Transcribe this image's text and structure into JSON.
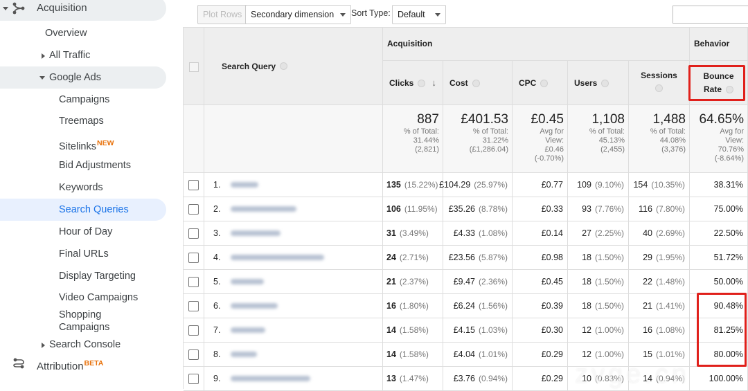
{
  "sidebar": {
    "items": [
      {
        "label": "Acquisition"
      },
      {
        "label": "Overview"
      },
      {
        "label": "All Traffic"
      },
      {
        "label": "Google Ads"
      },
      {
        "label": "Campaigns"
      },
      {
        "label": "Treemaps"
      },
      {
        "label": "Sitelinks",
        "badge": "NEW"
      },
      {
        "label": "Bid Adjustments"
      },
      {
        "label": "Keywords"
      },
      {
        "label": "Search Queries"
      },
      {
        "label": "Hour of Day"
      },
      {
        "label": "Final URLs"
      },
      {
        "label": "Display Targeting"
      },
      {
        "label": "Video Campaigns"
      },
      {
        "label": "Shopping Campaigns"
      },
      {
        "label": "Search Console"
      },
      {
        "label": "Attribution",
        "badge": "BETA"
      }
    ]
  },
  "toolbar": {
    "plot_rows": "Plot Rows",
    "secondary_dimension": "Secondary dimension",
    "sort_type_label": "Sort Type:",
    "sort_type": "Default"
  },
  "table": {
    "group_headers": [
      "Acquisition",
      "Behavior"
    ],
    "columns": [
      "Search Query",
      "Clicks",
      "Cost",
      "CPC",
      "Users",
      "Sessions",
      "Bounce Rate"
    ],
    "totals": [
      {
        "value": "887",
        "caption": "% of Total:",
        "share": "31.44%",
        "overall": "(2,821)"
      },
      {
        "value": "£401.53",
        "caption": "% of Total:",
        "share": "31.22%",
        "overall": "(£1,286.04)"
      },
      {
        "value": "£0.45",
        "caption": "Avg for View:",
        "share": "£0.46",
        "overall": "(-0.70%)"
      },
      {
        "value": "1,108",
        "caption": "% of Total:",
        "share": "45.13%",
        "overall": "(2,455)"
      },
      {
        "value": "1,488",
        "caption": "% of Total:",
        "share": "44.08%",
        "overall": "(3,376)"
      },
      {
        "value": "64.65%",
        "caption": "Avg for View:",
        "share": "70.76%",
        "overall": "(-8.64%)"
      }
    ],
    "rows": [
      [
        "1.",
        "135",
        "(15.22%)",
        "£104.29",
        "(25.97%)",
        "£0.77",
        "109",
        "(9.10%)",
        "154",
        "(10.35%)",
        "38.31%"
      ],
      [
        "2.",
        "106",
        "(11.95%)",
        "£35.26",
        "(8.78%)",
        "£0.33",
        "93",
        "(7.76%)",
        "116",
        "(7.80%)",
        "75.00%"
      ],
      [
        "3.",
        "31",
        "(3.49%)",
        "£4.33",
        "(1.08%)",
        "£0.14",
        "27",
        "(2.25%)",
        "40",
        "(2.69%)",
        "22.50%"
      ],
      [
        "4.",
        "24",
        "(2.71%)",
        "£23.56",
        "(5.87%)",
        "£0.98",
        "18",
        "(1.50%)",
        "29",
        "(1.95%)",
        "51.72%"
      ],
      [
        "5.",
        "21",
        "(2.37%)",
        "£9.47",
        "(2.36%)",
        "£0.45",
        "18",
        "(1.50%)",
        "22",
        "(1.48%)",
        "50.00%"
      ],
      [
        "6.",
        "16",
        "(1.80%)",
        "£6.24",
        "(1.56%)",
        "£0.39",
        "18",
        "(1.50%)",
        "21",
        "(1.41%)",
        "90.48%"
      ],
      [
        "7.",
        "14",
        "(1.58%)",
        "£4.15",
        "(1.03%)",
        "£0.30",
        "12",
        "(1.00%)",
        "16",
        "(1.08%)",
        "81.25%"
      ],
      [
        "8.",
        "14",
        "(1.58%)",
        "£4.04",
        "(1.01%)",
        "£0.29",
        "12",
        "(1.00%)",
        "15",
        "(1.01%)",
        "80.00%"
      ],
      [
        "9.",
        "13",
        "(1.47%)",
        "£3.76",
        "(0.94%)",
        "£0.29",
        "10",
        "(0.83%)",
        "14",
        "(0.94%)",
        "100.00%"
      ]
    ]
  },
  "watermark": "zvge.cn"
}
